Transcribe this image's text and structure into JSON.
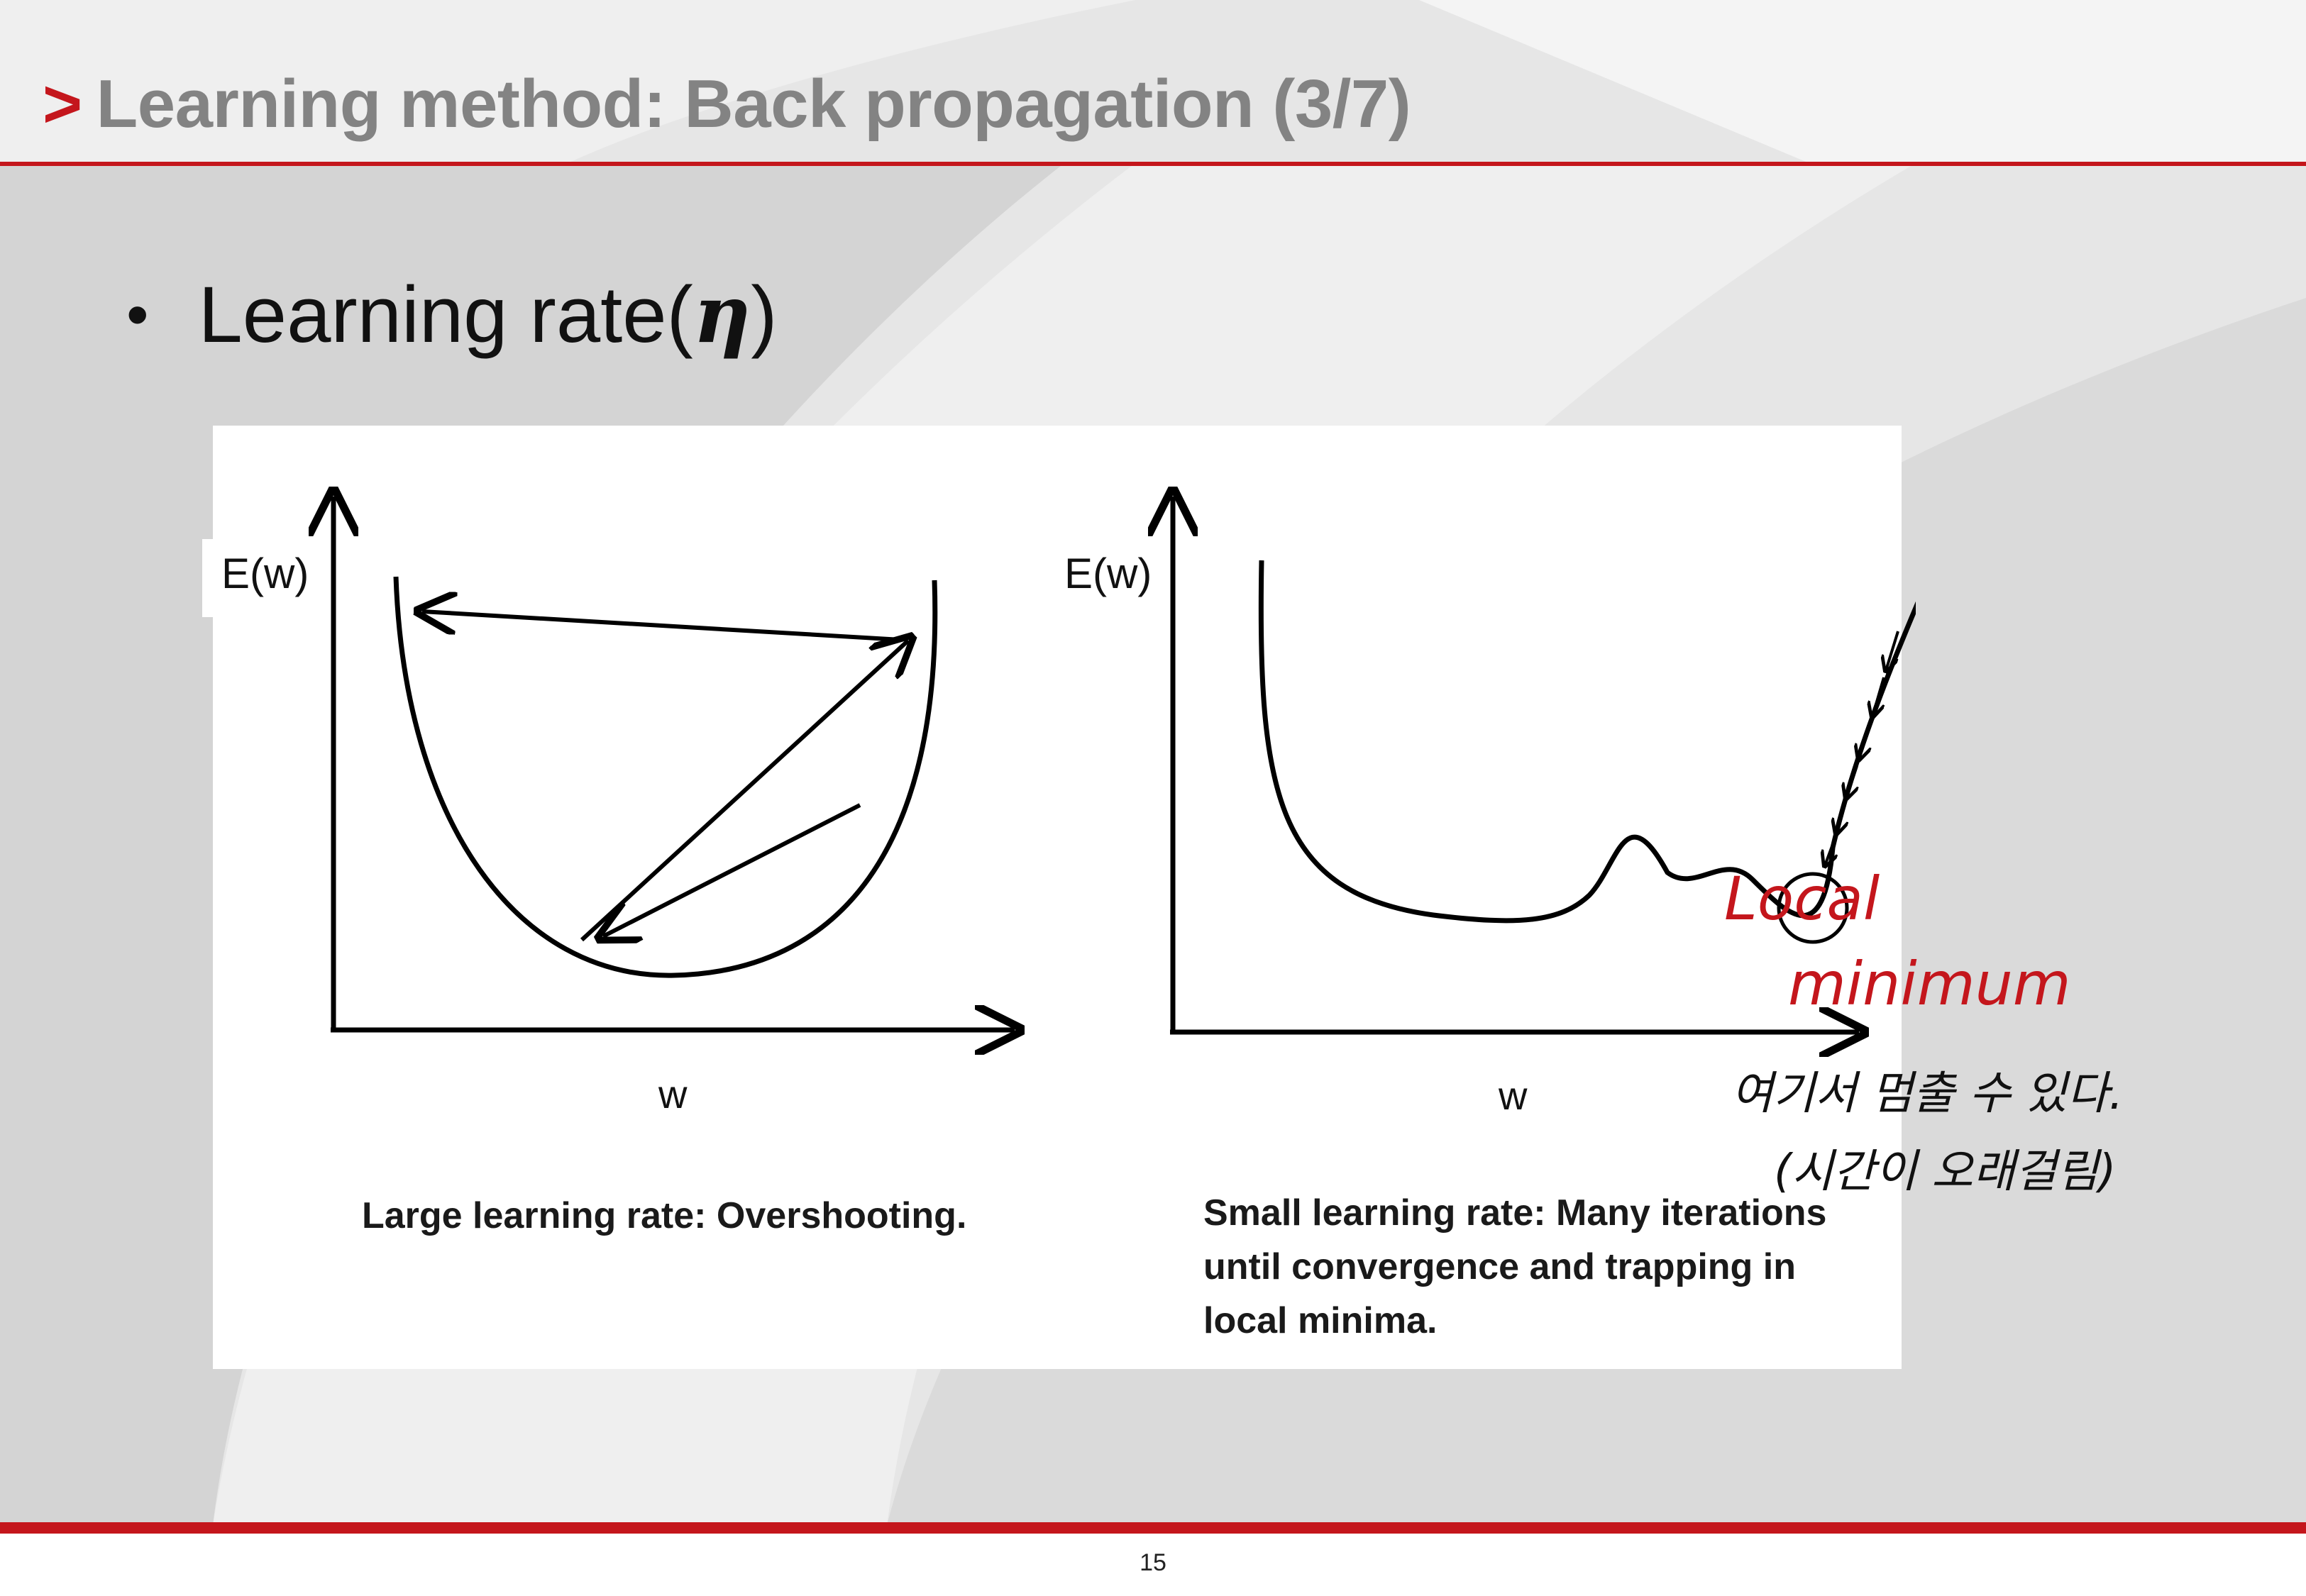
{
  "slide": {
    "title_marker": ">",
    "title": "Learning method: Back propagation (3/7)",
    "bullet_text": "Learning rate(",
    "bullet_symbol": "η",
    "bullet_close": ")",
    "page_number": "15",
    "accent_color": "#c4161c"
  },
  "diagram_left": {
    "y_label": "E(w)",
    "x_label": "w",
    "caption": "Large learning rate: Overshooting."
  },
  "diagram_right": {
    "y_label": "E(w)",
    "x_label": "w",
    "caption_lines": [
      "Small learning rate: Many iterations",
      "until convergence and trapping in",
      "local minima."
    ]
  },
  "handwritten": {
    "red_line1": "Local",
    "red_line2": "minimum",
    "black_line1": "여기서 멈출 수 있다.",
    "black_line2": "(시간이 오래걸림)"
  }
}
